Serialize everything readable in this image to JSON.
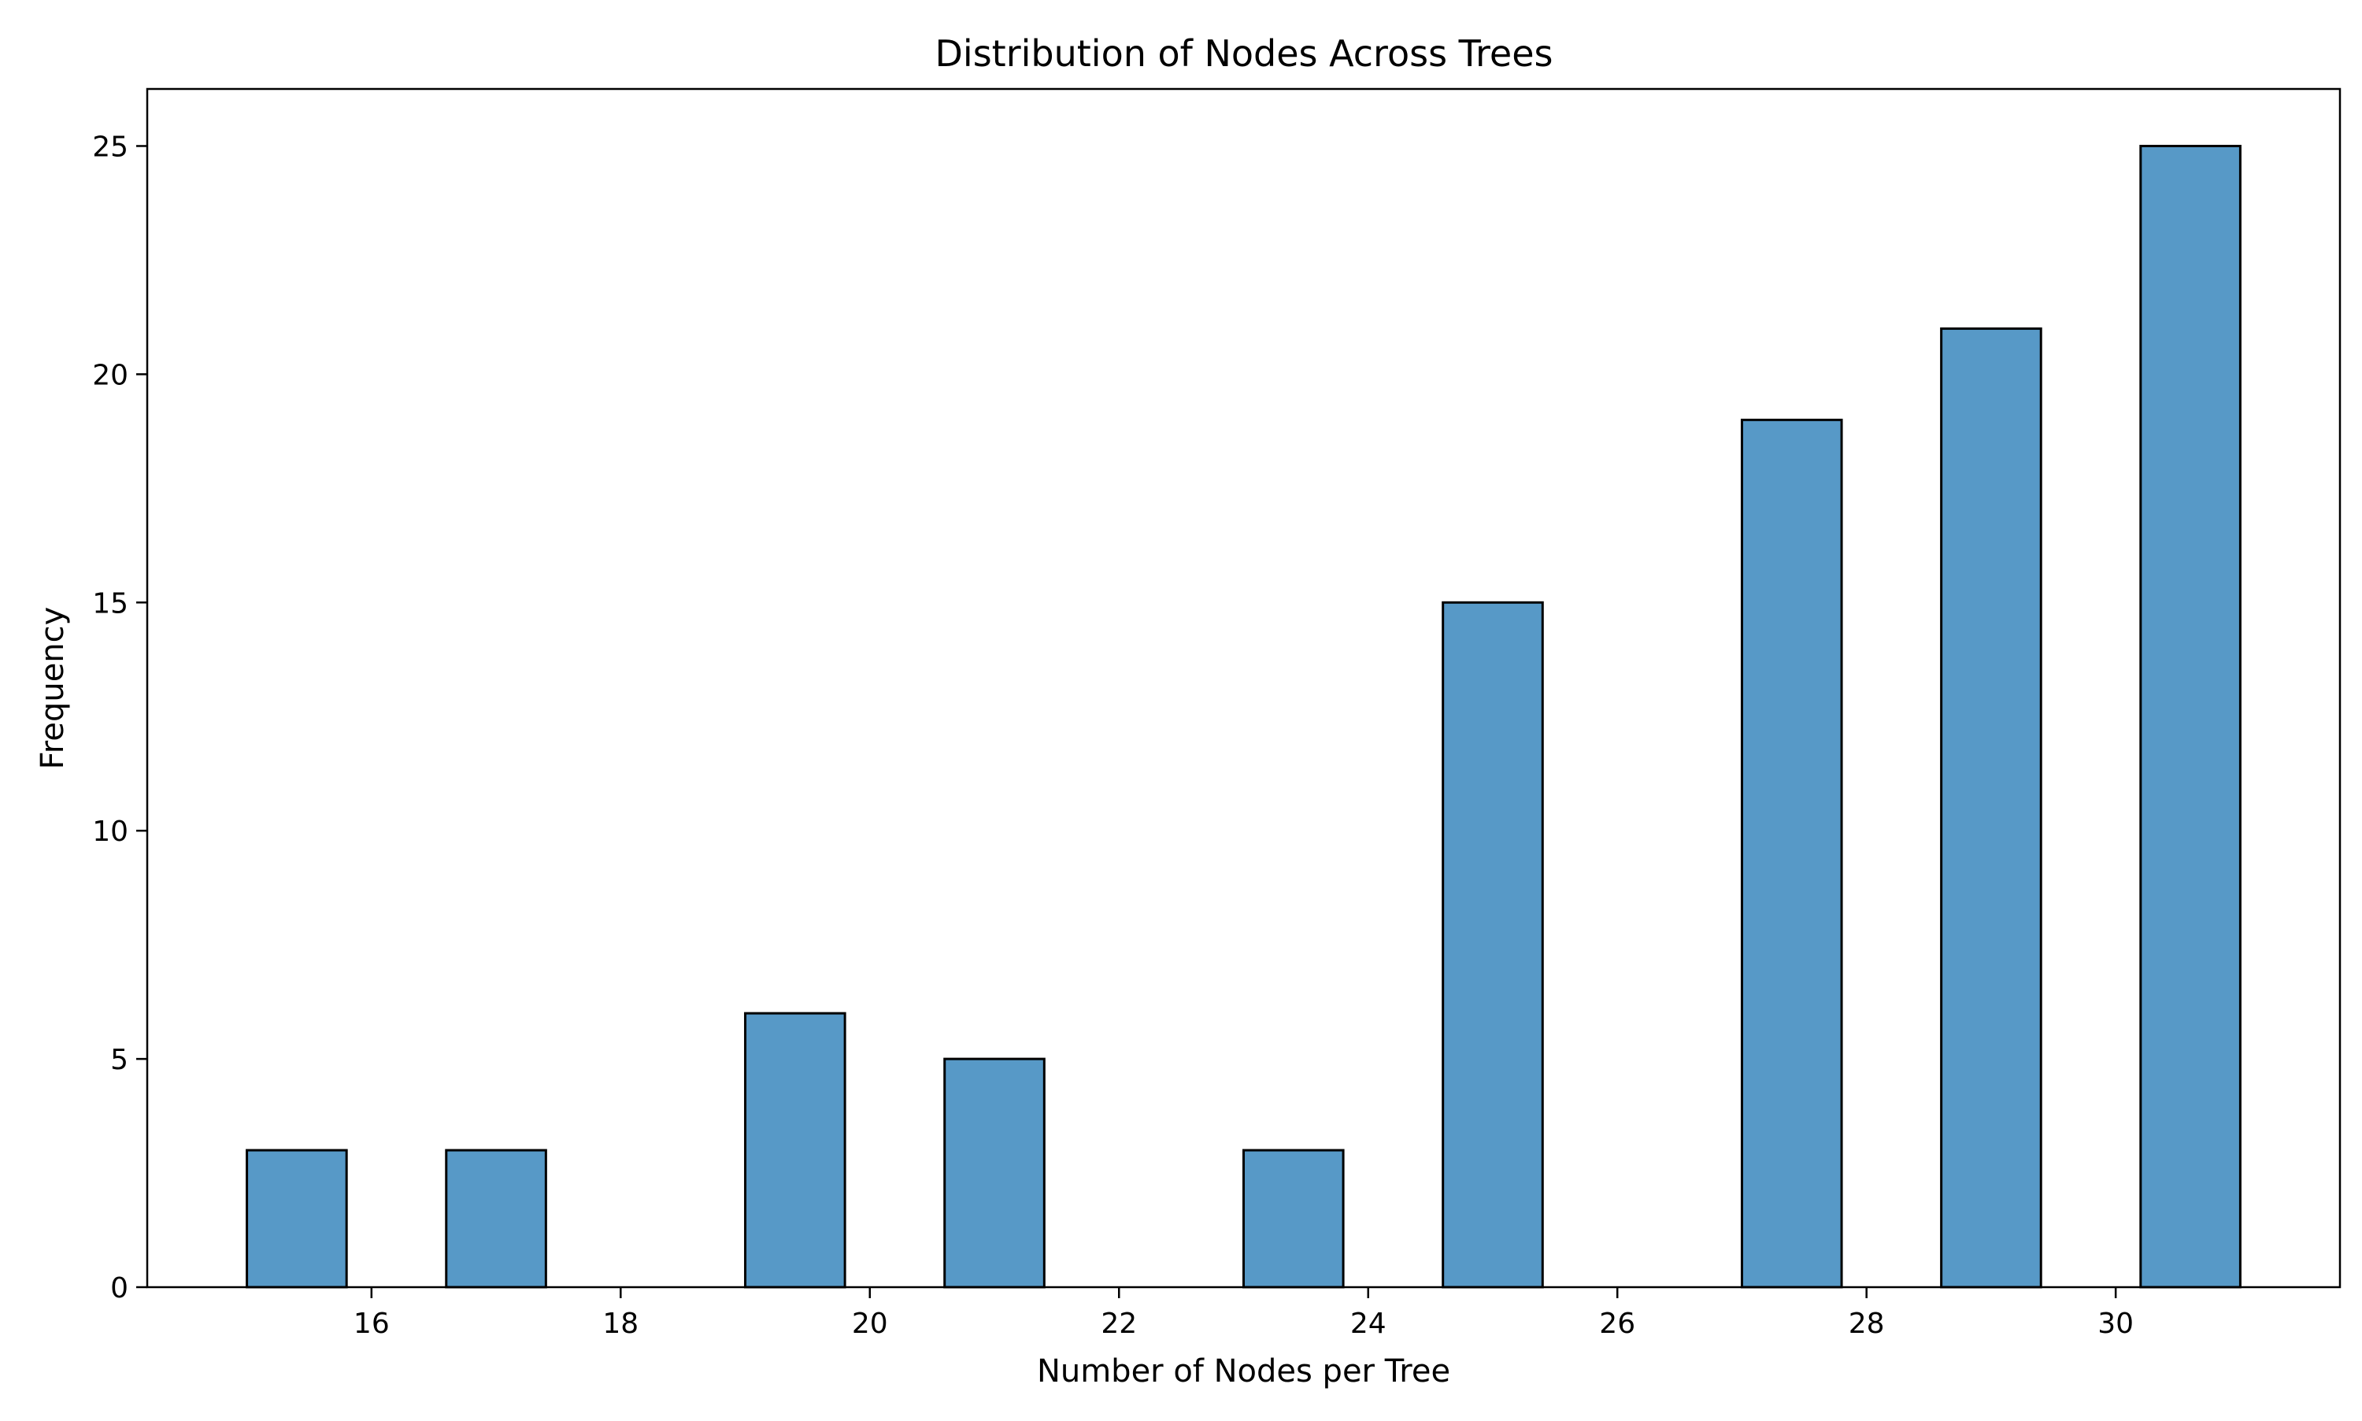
{
  "chart_data": {
    "type": "bar",
    "title": "Distribution of Nodes Across Trees",
    "xlabel": "Number of Nodes per Tree",
    "ylabel": "Frequency",
    "bar_color": "#5799c7",
    "edge_color": "#000000",
    "bin_width": 0.8,
    "bars": [
      {
        "start": 15.0,
        "value": 3
      },
      {
        "start": 15.8,
        "value": 0
      },
      {
        "start": 16.6,
        "value": 3
      },
      {
        "start": 17.4,
        "value": 0
      },
      {
        "start": 18.2,
        "value": 0
      },
      {
        "start": 19.0,
        "value": 6
      },
      {
        "start": 19.8,
        "value": 0
      },
      {
        "start": 20.6,
        "value": 5
      },
      {
        "start": 21.4,
        "value": 0
      },
      {
        "start": 22.2,
        "value": 0
      },
      {
        "start": 23.0,
        "value": 3
      },
      {
        "start": 23.8,
        "value": 0
      },
      {
        "start": 24.6,
        "value": 15
      },
      {
        "start": 25.4,
        "value": 0
      },
      {
        "start": 26.2,
        "value": 0
      },
      {
        "start": 27.0,
        "value": 19
      },
      {
        "start": 27.8,
        "value": 0
      },
      {
        "start": 28.6,
        "value": 21
      },
      {
        "start": 29.4,
        "value": 0
      },
      {
        "start": 30.2,
        "value": 25
      }
    ],
    "xlim": [
      14.2,
      31.8
    ],
    "ylim": [
      0,
      26.25
    ],
    "x_ticks": [
      16,
      18,
      20,
      22,
      24,
      26,
      28,
      30
    ],
    "y_ticks": [
      0,
      5,
      10,
      15,
      20,
      25
    ],
    "grid": false
  }
}
